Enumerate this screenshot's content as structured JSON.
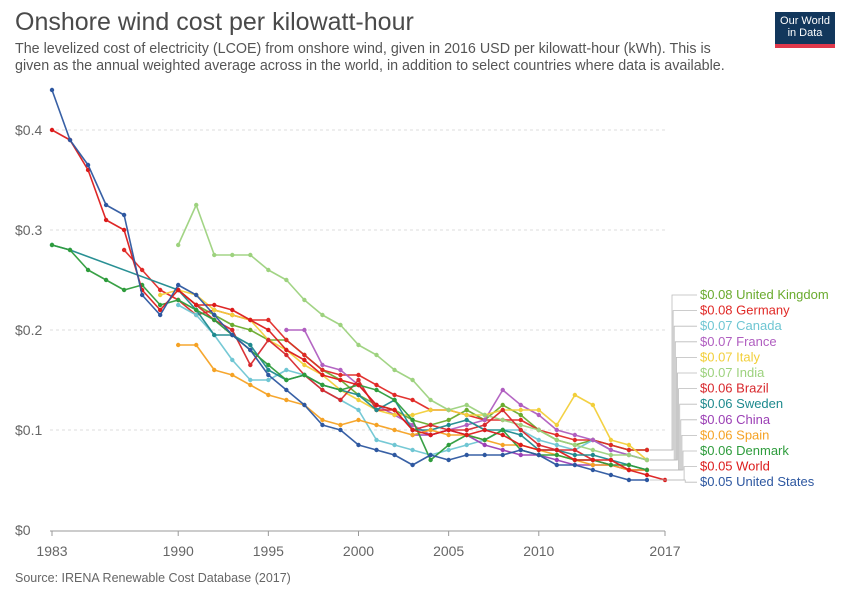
{
  "header": {
    "title": "Onshore wind cost per kilowatt-hour",
    "subtitle": "The levelized cost of electricity (LCOE) from onshore wind, given in 2016 USD per kilowatt-hour (kWh). This is given as the annual weighted average across in the world, in addition to select countries where data is available."
  },
  "logo": {
    "line1": "Our World",
    "line2": "in Data"
  },
  "footer": {
    "source": "Source: IRENA Renewable Cost Database (2017)"
  },
  "chart_data": {
    "type": "line",
    "title": "Onshore wind cost per kilowatt-hour",
    "xlim": [
      1983,
      2017
    ],
    "ylim": [
      0,
      0.44
    ],
    "x_ticks": [
      1983,
      1990,
      1995,
      2000,
      2005,
      2010,
      2017
    ],
    "y_ticks": [
      {
        "value": 0,
        "label": "$0"
      },
      {
        "value": 0.1,
        "label": "$0.1"
      },
      {
        "value": 0.2,
        "label": "$0.2"
      },
      {
        "value": 0.3,
        "label": "$0.3"
      },
      {
        "value": 0.4,
        "label": "$0.4"
      }
    ],
    "grid": true,
    "legend_position": "right",
    "series": [
      {
        "name": "United Kingdom",
        "end_label": "$0.08 United Kingdom",
        "color": "#6aab2e",
        "x": [
          1990,
          1991,
          1992,
          1993,
          1994,
          1995,
          1996,
          1997,
          1998,
          1999,
          2000,
          2001,
          2002,
          2003,
          2004,
          2005,
          2006,
          2007,
          2008,
          2009,
          2010,
          2011,
          2012,
          2013,
          2014,
          2015,
          2016
        ],
        "y": [
          0.24,
          0.225,
          0.215,
          0.205,
          0.2,
          0.19,
          0.19,
          0.175,
          0.16,
          0.15,
          0.135,
          0.125,
          0.12,
          0.11,
          0.105,
          0.11,
          0.12,
          0.11,
          0.125,
          0.115,
          0.1,
          0.09,
          0.085,
          0.09,
          0.085,
          0.08,
          0.08
        ]
      },
      {
        "name": "Germany",
        "end_label": "$0.08 Germany",
        "color": "#e02926",
        "x": [
          1987,
          1988,
          1989,
          1990,
          1991,
          1992,
          1993,
          1994,
          1995,
          1996,
          1997,
          1998,
          1999,
          2000,
          2001,
          2002,
          2003,
          2004,
          2005,
          2006,
          2007,
          2008,
          2009,
          2010,
          2011,
          2012,
          2013,
          2014,
          2015,
          2016
        ],
        "y": [
          0.28,
          0.26,
          0.24,
          0.23,
          0.215,
          0.22,
          0.215,
          0.21,
          0.21,
          0.19,
          0.175,
          0.16,
          0.155,
          0.155,
          0.145,
          0.135,
          0.13,
          0.12,
          0.12,
          0.115,
          0.11,
          0.11,
          0.11,
          0.1,
          0.095,
          0.09,
          0.09,
          0.085,
          0.08,
          0.08
        ]
      },
      {
        "name": "Canada",
        "end_label": "$0.07 Canada",
        "color": "#6fc6d3",
        "x": [
          1990,
          1991,
          1992,
          1993,
          1994,
          1995,
          1996,
          1997,
          1998,
          1999,
          2000,
          2001,
          2002,
          2003,
          2004,
          2005,
          2006,
          2007,
          2008,
          2009,
          2010,
          2011,
          2012,
          2013,
          2014,
          2015,
          2016
        ],
        "y": [
          0.225,
          0.215,
          0.195,
          0.17,
          0.15,
          0.15,
          0.16,
          0.155,
          0.14,
          0.13,
          0.12,
          0.09,
          0.085,
          0.08,
          0.075,
          0.08,
          0.085,
          0.09,
          0.1,
          0.1,
          0.09,
          0.085,
          0.08,
          0.09,
          0.08,
          0.075,
          0.07
        ]
      },
      {
        "name": "France",
        "end_label": "$0.07 France",
        "color": "#b05ec0",
        "x": [
          1996,
          1997,
          1998,
          1999,
          2000,
          2001,
          2002,
          2003,
          2004,
          2005,
          2006,
          2007,
          2008,
          2009,
          2010,
          2011,
          2012,
          2013,
          2014,
          2015,
          2016
        ],
        "y": [
          0.2,
          0.2,
          0.165,
          0.16,
          0.145,
          0.125,
          0.115,
          0.105,
          0.095,
          0.1,
          0.105,
          0.11,
          0.14,
          0.125,
          0.115,
          0.1,
          0.095,
          0.09,
          0.08,
          0.075,
          0.07
        ]
      },
      {
        "name": "Italy",
        "end_label": "$0.07 Italy",
        "color": "#f2cf3a",
        "x": [
          1989,
          1990,
          1991,
          1992,
          1993,
          1994,
          1995,
          1996,
          1997,
          1998,
          1999,
          2000,
          2001,
          2002,
          2003,
          2004,
          2005,
          2006,
          2007,
          2008,
          2009,
          2010,
          2011,
          2012,
          2013,
          2014,
          2015,
          2016
        ],
        "y": [
          0.235,
          0.24,
          0.235,
          0.22,
          0.215,
          0.21,
          0.19,
          0.18,
          0.165,
          0.155,
          0.14,
          0.13,
          0.12,
          0.115,
          0.115,
          0.12,
          0.12,
          0.115,
          0.115,
          0.12,
          0.12,
          0.12,
          0.105,
          0.135,
          0.125,
          0.09,
          0.085,
          0.07
        ]
      },
      {
        "name": "India",
        "end_label": "$0.07 India",
        "color": "#9dd27e",
        "x": [
          1990,
          1991,
          1992,
          1993,
          1994,
          1995,
          1996,
          1997,
          1998,
          1999,
          2000,
          2001,
          2002,
          2003,
          2004,
          2005,
          2006,
          2007,
          2008,
          2009,
          2010,
          2011,
          2012,
          2013,
          2014,
          2015,
          2016
        ],
        "y": [
          0.285,
          0.325,
          0.275,
          0.275,
          0.275,
          0.26,
          0.25,
          0.23,
          0.215,
          0.205,
          0.185,
          0.175,
          0.16,
          0.15,
          0.13,
          0.12,
          0.125,
          0.115,
          0.11,
          0.105,
          0.1,
          0.09,
          0.085,
          0.08,
          0.075,
          0.075,
          0.07
        ]
      },
      {
        "name": "Brazil",
        "end_label": "$0.06 Brazil",
        "color": "#d8282d",
        "x": [
          1990,
          1991,
          1992,
          1993,
          1994,
          1995,
          1996,
          1997,
          1998,
          1999,
          2000,
          2001,
          2002,
          2003,
          2004,
          2005,
          2006,
          2007,
          2008,
          2009,
          2010,
          2011,
          2012,
          2013,
          2014,
          2015,
          2016
        ],
        "y": [
          0.24,
          0.225,
          0.21,
          0.2,
          0.165,
          0.19,
          0.175,
          0.155,
          0.14,
          0.13,
          0.15,
          0.12,
          0.12,
          0.1,
          0.105,
          0.1,
          0.1,
          0.105,
          0.12,
          0.1,
          0.085,
          0.08,
          0.08,
          0.07,
          0.065,
          0.06,
          0.06
        ]
      },
      {
        "name": "Sweden",
        "end_label": "$0.06 Sweden",
        "color": "#1e8a8e",
        "x": [
          1983,
          1984,
          1990,
          1991,
          1992,
          1993,
          1994,
          1995,
          1996,
          1997,
          1998,
          1999,
          2000,
          2001,
          2002,
          2003,
          2004,
          2005,
          2006,
          2007,
          2008,
          2009,
          2010,
          2011,
          2012,
          2013,
          2014,
          2015,
          2016
        ],
        "y": [
          0.285,
          0.28,
          0.24,
          0.22,
          0.195,
          0.195,
          0.185,
          0.16,
          0.15,
          0.155,
          0.145,
          0.14,
          0.135,
          0.12,
          0.13,
          0.1,
          0.1,
          0.105,
          0.11,
          0.1,
          0.1,
          0.095,
          0.08,
          0.08,
          0.075,
          0.075,
          0.07,
          0.065,
          0.06
        ]
      },
      {
        "name": "China",
        "end_label": "$0.06 China",
        "color": "#9b3fb5",
        "x": [
          2003,
          2004,
          2005,
          2006,
          2007,
          2008,
          2009,
          2010,
          2011,
          2012,
          2013,
          2014,
          2015,
          2016
        ],
        "y": [
          0.095,
          0.095,
          0.1,
          0.095,
          0.085,
          0.08,
          0.075,
          0.075,
          0.07,
          0.065,
          0.065,
          0.065,
          0.06,
          0.06
        ]
      },
      {
        "name": "Spain",
        "end_label": "$0.06 Spain",
        "color": "#f5a224",
        "x": [
          1990,
          1991,
          1992,
          1993,
          1994,
          1995,
          1996,
          1997,
          1998,
          1999,
          2000,
          2001,
          2002,
          2003,
          2004,
          2005,
          2006,
          2007,
          2008,
          2009,
          2010,
          2011,
          2012,
          2013,
          2014,
          2015,
          2016
        ],
        "y": [
          0.185,
          0.185,
          0.16,
          0.155,
          0.145,
          0.135,
          0.13,
          0.125,
          0.11,
          0.105,
          0.11,
          0.105,
          0.1,
          0.095,
          0.1,
          0.095,
          0.095,
          0.09,
          0.085,
          0.085,
          0.08,
          0.075,
          0.07,
          0.065,
          0.065,
          0.06,
          0.06
        ]
      },
      {
        "name": "Denmark",
        "end_label": "$0.06 Denmark",
        "color": "#2e9c3c",
        "x": [
          1983,
          1984,
          1985,
          1986,
          1987,
          1988,
          1989,
          1990,
          1991,
          1992,
          1993,
          1994,
          1995,
          1996,
          1997,
          1998,
          1999,
          2000,
          2001,
          2002,
          2003,
          2004,
          2005,
          2006,
          2007,
          2008,
          2009,
          2010,
          2011,
          2012,
          2013,
          2014,
          2015,
          2016
        ],
        "y": [
          0.285,
          0.28,
          0.26,
          0.25,
          0.24,
          0.245,
          0.225,
          0.23,
          0.22,
          0.21,
          0.195,
          0.18,
          0.165,
          0.15,
          0.155,
          0.145,
          0.14,
          0.145,
          0.14,
          0.13,
          0.11,
          0.07,
          0.085,
          0.095,
          0.09,
          0.1,
          0.08,
          0.075,
          0.075,
          0.07,
          0.07,
          0.065,
          0.065,
          0.06
        ]
      },
      {
        "name": "World",
        "end_label": "$0.05 World",
        "color": "#dc1b1b",
        "x": [
          1983,
          1984,
          1985,
          1986,
          1987,
          1988,
          1989,
          1990,
          1991,
          1992,
          1993,
          1994,
          1995,
          1996,
          1997,
          1998,
          1999,
          2000,
          2001,
          2002,
          2003,
          2004,
          2005,
          2006,
          2007,
          2008,
          2009,
          2010,
          2011,
          2012,
          2013,
          2014,
          2015,
          2016,
          2017
        ],
        "y": [
          0.4,
          0.39,
          0.36,
          0.31,
          0.3,
          0.24,
          0.22,
          0.24,
          0.225,
          0.225,
          0.22,
          0.21,
          0.2,
          0.18,
          0.17,
          0.155,
          0.15,
          0.145,
          0.125,
          0.12,
          0.1,
          0.095,
          0.1,
          0.095,
          0.1,
          0.095,
          0.085,
          0.08,
          0.08,
          0.07,
          0.07,
          0.07,
          0.06,
          0.055,
          0.05
        ]
      },
      {
        "name": "United States",
        "end_label": "$0.05 United States",
        "color": "#2d57a0",
        "x": [
          1983,
          1984,
          1985,
          1986,
          1987,
          1988,
          1989,
          1990,
          1991,
          1992,
          1993,
          1994,
          1995,
          1996,
          1997,
          1998,
          1999,
          2000,
          2001,
          2002,
          2003,
          2004,
          2005,
          2006,
          2007,
          2008,
          2009,
          2010,
          2011,
          2012,
          2013,
          2014,
          2015,
          2016
        ],
        "y": [
          0.44,
          0.39,
          0.365,
          0.325,
          0.315,
          0.235,
          0.215,
          0.245,
          0.235,
          0.215,
          0.195,
          0.18,
          0.155,
          0.14,
          0.125,
          0.105,
          0.1,
          0.085,
          0.08,
          0.075,
          0.065,
          0.075,
          0.07,
          0.075,
          0.075,
          0.075,
          0.08,
          0.075,
          0.065,
          0.065,
          0.06,
          0.055,
          0.05,
          0.05
        ]
      }
    ]
  }
}
